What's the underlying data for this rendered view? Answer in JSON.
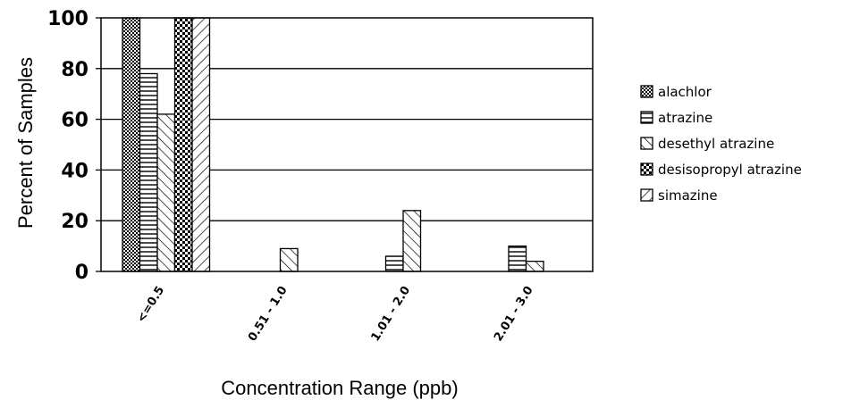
{
  "chart_data": {
    "type": "bar",
    "title": "",
    "xlabel": "Concentration Range (ppb)",
    "ylabel": "Percent of Samples",
    "ylim": [
      0,
      100
    ],
    "yticks": [
      "0",
      "20",
      "40",
      "60",
      "80",
      "100"
    ],
    "grid": "horizontal",
    "legend_position": "right",
    "categories": [
      "<=0.5",
      "0.51 - 1.0",
      "1.01 - 2.0",
      "2.01 - 3.0"
    ],
    "series": [
      {
        "name": "alachlor",
        "pattern": "checker",
        "values": [
          100,
          0,
          0,
          0
        ]
      },
      {
        "name": "atrazine",
        "pattern": "horizontal",
        "values": [
          78,
          0,
          6,
          10
        ]
      },
      {
        "name": "desethyl atrazine",
        "pattern": "diagonal-up",
        "values": [
          62,
          9,
          24,
          4
        ]
      },
      {
        "name": "desisopropyl atrazine",
        "pattern": "bold-checker",
        "values": [
          100,
          0,
          0,
          0
        ]
      },
      {
        "name": "simazine",
        "pattern": "diagonal-down",
        "values": [
          100,
          0,
          0,
          0
        ]
      }
    ],
    "colors": {
      "bar_fill": "#ffffff",
      "line": "#000000"
    }
  }
}
